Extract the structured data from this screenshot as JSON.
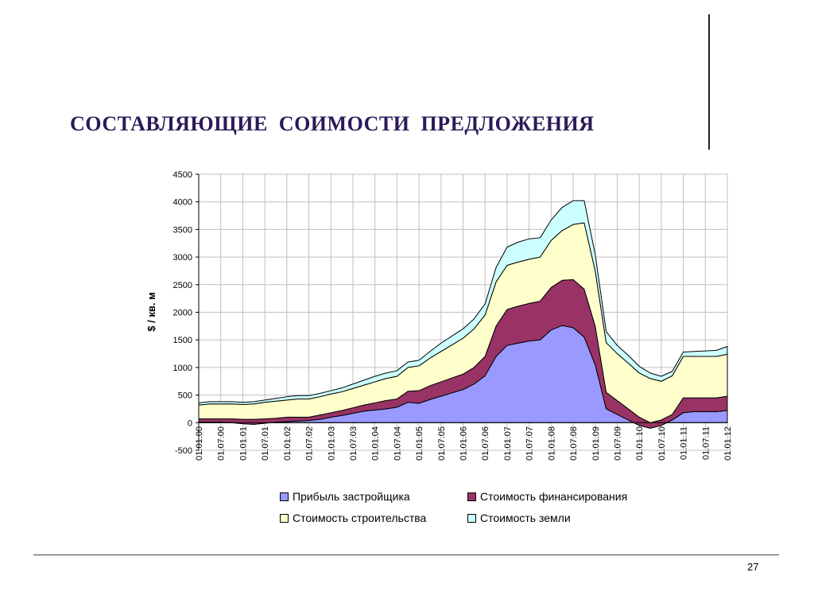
{
  "slide": {
    "title": "СОСТАВЛЯЮЩИЕ  СОИМОСТИ  ПРЕДЛОЖЕНИЯ",
    "page_number": "27"
  },
  "chart_data": {
    "type": "area",
    "stacked": true,
    "ylabel": "$ / кв. м",
    "ylim": [
      -500,
      4500
    ],
    "yticks": [
      -500,
      0,
      500,
      1000,
      1500,
      2000,
      2500,
      3000,
      3500,
      4000,
      4500
    ],
    "grid": true,
    "legend_position": "bottom",
    "x_tick_labels": [
      "01.01.00",
      "01.07.00",
      "01.01.01",
      "01.07.01",
      "01.01.02",
      "01.07.02",
      "01.01.03",
      "01.07.03",
      "01.01.04",
      "01.07.04",
      "01.01.05",
      "01.07.05",
      "01.01.06",
      "01.07.06",
      "01.01.07",
      "01.07.07",
      "01.01.08",
      "01.07.08",
      "01.01.09",
      "01.07.09",
      "01.01.10",
      "01.07.10",
      "01.01.11",
      "01.07.11",
      "01.01.12"
    ],
    "x": [
      "01.01.00",
      "01.04.00",
      "01.07.00",
      "01.10.00",
      "01.01.01",
      "01.04.01",
      "01.07.01",
      "01.10.01",
      "01.01.02",
      "01.04.02",
      "01.07.02",
      "01.10.02",
      "01.01.03",
      "01.04.03",
      "01.07.03",
      "01.10.03",
      "01.01.04",
      "01.04.04",
      "01.07.04",
      "01.10.04",
      "01.01.05",
      "01.04.05",
      "01.07.05",
      "01.10.05",
      "01.01.06",
      "01.04.06",
      "01.07.06",
      "01.10.06",
      "01.01.07",
      "01.04.07",
      "01.07.07",
      "01.10.07",
      "01.01.08",
      "01.04.08",
      "01.07.08",
      "01.10.08",
      "01.01.09",
      "01.04.09",
      "01.07.09",
      "01.10.09",
      "01.01.10",
      "01.04.10",
      "01.07.10",
      "01.10.10",
      "01.01.11",
      "01.04.11",
      "01.07.11",
      "01.10.11",
      "01.01.12"
    ],
    "series": [
      {
        "name": "Прибыль застройщика",
        "color": "#9999ff",
        "values": [
          10,
          10,
          10,
          0,
          -20,
          -30,
          -10,
          10,
          20,
          30,
          40,
          60,
          100,
          130,
          170,
          210,
          230,
          250,
          280,
          370,
          350,
          420,
          480,
          540,
          600,
          700,
          850,
          1200,
          1400,
          1440,
          1480,
          1500,
          1680,
          1760,
          1720,
          1550,
          1050,
          250,
          150,
          50,
          -50,
          -100,
          -50,
          50,
          180,
          200,
          200,
          200,
          220
        ]
      },
      {
        "name": "Стоимость финансирования",
        "color": "#993366",
        "values": [
          60,
          60,
          60,
          70,
          80,
          90,
          80,
          70,
          80,
          70,
          60,
          80,
          80,
          90,
          100,
          110,
          130,
          150,
          150,
          200,
          230,
          250,
          260,
          270,
          280,
          300,
          350,
          550,
          650,
          670,
          680,
          700,
          770,
          820,
          870,
          870,
          700,
          300,
          250,
          200,
          150,
          100,
          100,
          100,
          270,
          250,
          250,
          250,
          260
        ]
      },
      {
        "name": "Стоимость строительства",
        "color": "#ffffcc",
        "values": [
          250,
          270,
          270,
          270,
          270,
          280,
          300,
          310,
          310,
          330,
          330,
          330,
          340,
          340,
          350,
          360,
          380,
          400,
          410,
          430,
          450,
          500,
          550,
          600,
          650,
          700,
          750,
          800,
          800,
          800,
          800,
          800,
          850,
          900,
          1000,
          1200,
          1000,
          900,
          850,
          830,
          800,
          800,
          700,
          700,
          750,
          750,
          750,
          750,
          760
        ]
      },
      {
        "name": "Стоимость земли",
        "color": "#ccffff",
        "values": [
          40,
          40,
          40,
          40,
          40,
          40,
          40,
          50,
          60,
          60,
          60,
          60,
          60,
          70,
          80,
          90,
          100,
          100,
          100,
          100,
          100,
          120,
          150,
          160,
          170,
          180,
          200,
          260,
          330,
          360,
          370,
          350,
          370,
          420,
          430,
          400,
          300,
          200,
          150,
          140,
          120,
          100,
          90,
          80,
          80,
          90,
          100,
          110,
          140
        ]
      }
    ]
  }
}
